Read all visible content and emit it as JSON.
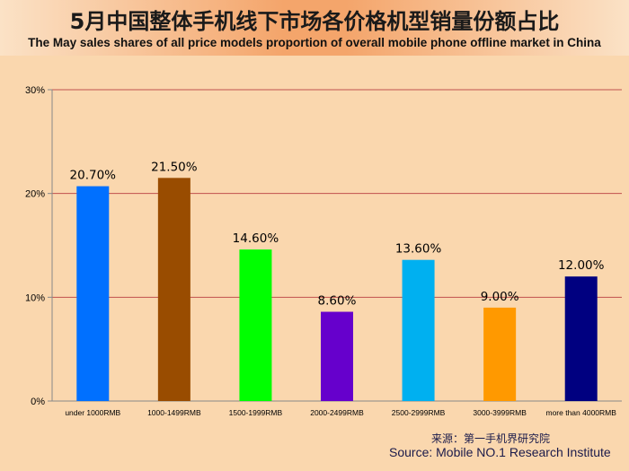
{
  "title": "5月中国整体手机线下市场各价格机型销量份额占比",
  "subtitle": "The May sales shares of all price models proportion of overall mobile phone offline market in China",
  "source_cn": "来源：第一手机界研究院",
  "source_en": "Source: Mobile NO.1 Research Institute",
  "chart_data": {
    "type": "bar",
    "categories": [
      "under 1000RMB",
      "1000-1499RMB",
      "1500-1999RMB",
      "2000-2499RMB",
      "2500-2999RMB",
      "3000-3999RMB",
      "more than 4000RMB"
    ],
    "values": [
      20.7,
      21.5,
      14.6,
      8.6,
      13.6,
      9.0,
      12.0
    ],
    "data_labels": [
      "20.70%",
      "21.50%",
      "14.60%",
      "8.60%",
      "13.60%",
      "9.00%",
      "12.00%"
    ],
    "colors": [
      "#0070ff",
      "#994c00",
      "#00ff00",
      "#6600cc",
      "#00b0f0",
      "#ff9900",
      "#000080"
    ],
    "ylim": [
      0,
      30
    ],
    "yticks": [
      0,
      10,
      20,
      30
    ],
    "ytick_labels": [
      "0%",
      "10%",
      "20%",
      "30%"
    ],
    "grid": true,
    "gridline_color": "#c0504d"
  }
}
